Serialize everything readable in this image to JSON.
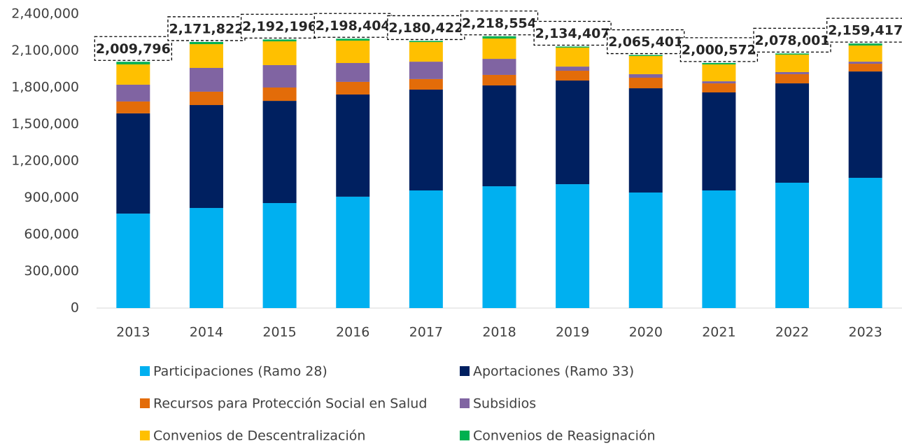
{
  "chart_data": {
    "type": "stacked_bar",
    "categories": [
      "2013",
      "2014",
      "2015",
      "2016",
      "2017",
      "2018",
      "2019",
      "2020",
      "2021",
      "2022",
      "2023"
    ],
    "series": [
      {
        "name": "Participaciones (Ramo 28)",
        "color": "#00b0f0",
        "values": [
          771000,
          817000,
          857000,
          909000,
          960000,
          994000,
          1011000,
          943000,
          960000,
          1023000,
          1063000
        ]
      },
      {
        "name": "Aportaciones (Ramo 33)",
        "color": "#002060",
        "values": [
          818000,
          840000,
          834000,
          834000,
          823000,
          823000,
          846000,
          851000,
          800000,
          811000,
          868000
        ]
      },
      {
        "name": "Recursos para Protección Social en Salud",
        "color": "#e36c09",
        "values": [
          97000,
          109000,
          109000,
          103000,
          86000,
          86000,
          80000,
          86000,
          74000,
          75000,
          63000
        ]
      },
      {
        "name": "Subsidios",
        "color": "#8064a2",
        "values": [
          137000,
          194000,
          183000,
          154000,
          142000,
          131000,
          34000,
          29000,
          17000,
          17000,
          17000
        ]
      },
      {
        "name": "Convenios de Descentralización",
        "color": "#ffc000",
        "values": [
          166000,
          194000,
          194000,
          183000,
          160000,
          166000,
          155000,
          148000,
          138000,
          143000,
          132000
        ]
      },
      {
        "name": "Convenios de Reasignación",
        "color": "#00b050",
        "values": [
          20796,
          17822,
          15196,
          15404,
          9422,
          18554,
          8407,
          8401,
          11572,
          9001,
          16417
        ]
      }
    ],
    "totals": [
      2009796,
      2171822,
      2192196,
      2198404,
      2180422,
      2218554,
      2134407,
      2065401,
      2000572,
      2078001,
      2159417
    ],
    "total_labels": [
      "2,009,796",
      "2,171,822",
      "2,192,196",
      "2,198,404",
      "2,180,422",
      "2,218,554",
      "2,134,407",
      "2,065,401",
      "2,000,572",
      "2,078,001",
      "2,159,417"
    ],
    "ylim": [
      0,
      2400000
    ],
    "yticks": [
      0,
      {
        "value": 300000,
        "label": "300,000"
      },
      {
        "value": 600000,
        "label": "600,000"
      },
      {
        "value": 900000,
        "label": "900,000"
      },
      {
        "value": 1200000,
        "label": "1,200,000"
      },
      {
        "value": 1500000,
        "label": "1,500,000"
      },
      {
        "value": 1800000,
        "label": "1,800,000"
      },
      {
        "value": 2100000,
        "label": "2,100,000"
      },
      {
        "value": 2400000,
        "label": "2,400,000"
      }
    ],
    "grid": false,
    "legend": "bottom"
  }
}
